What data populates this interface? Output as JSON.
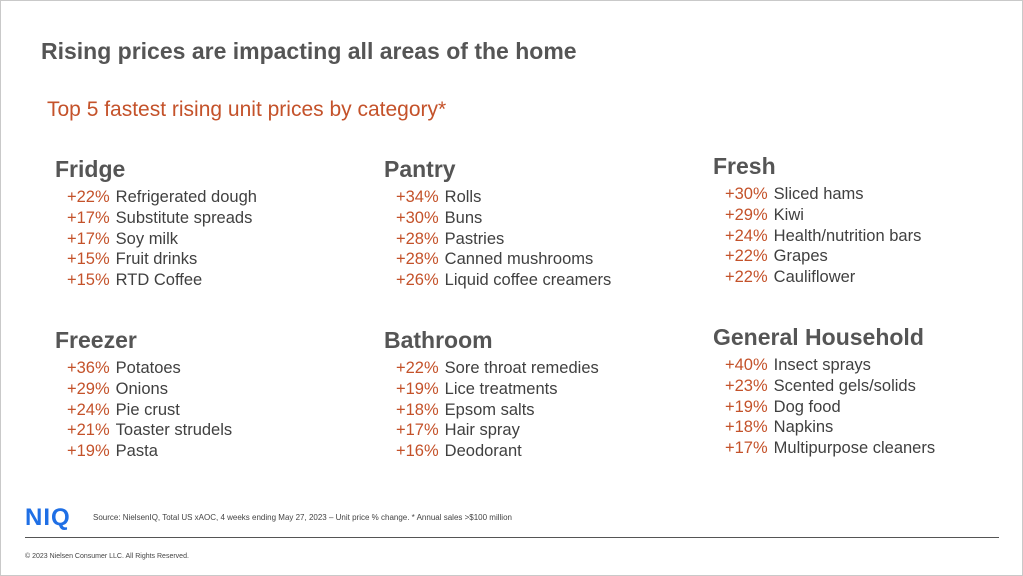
{
  "title": "Rising prices are impacting all areas of the home",
  "subtitle": "Top 5 fastest rising unit prices by category*",
  "categories": [
    {
      "name": "Fridge",
      "items": [
        {
          "pct": "+22%",
          "label": "Refrigerated dough"
        },
        {
          "pct": "+17%",
          "label": "Substitute spreads"
        },
        {
          "pct": "+17%",
          "label": "Soy milk"
        },
        {
          "pct": "+15%",
          "label": "Fruit drinks"
        },
        {
          "pct": "+15%",
          "label": "RTD Coffee"
        }
      ]
    },
    {
      "name": "Pantry",
      "items": [
        {
          "pct": "+34%",
          "label": "Rolls"
        },
        {
          "pct": "+30%",
          "label": "Buns"
        },
        {
          "pct": "+28%",
          "label": "Pastries"
        },
        {
          "pct": "+28%",
          "label": "Canned mushrooms"
        },
        {
          "pct": "+26%",
          "label": "Liquid coffee creamers"
        }
      ]
    },
    {
      "name": "Fresh",
      "items": [
        {
          "pct": "+30%",
          "label": "Sliced hams"
        },
        {
          "pct": "+29%",
          "label": "Kiwi"
        },
        {
          "pct": "+24%",
          "label": "Health/nutrition bars"
        },
        {
          "pct": "+22%",
          "label": "Grapes"
        },
        {
          "pct": "+22%",
          "label": "Cauliflower"
        }
      ]
    },
    {
      "name": "Freezer",
      "items": [
        {
          "pct": "+36%",
          "label": "Potatoes"
        },
        {
          "pct": "+29%",
          "label": "Onions"
        },
        {
          "pct": "+24%",
          "label": "Pie crust"
        },
        {
          "pct": "+21%",
          "label": "Toaster strudels"
        },
        {
          "pct": "+19%",
          "label": "Pasta"
        }
      ]
    },
    {
      "name": "Bathroom",
      "items": [
        {
          "pct": "+22%",
          "label": "Sore throat remedies"
        },
        {
          "pct": "+19%",
          "label": "Lice treatments"
        },
        {
          "pct": "+18%",
          "label": "Epsom salts"
        },
        {
          "pct": "+17%",
          "label": "Hair spray"
        },
        {
          "pct": "+16%",
          "label": "Deodorant"
        }
      ]
    },
    {
      "name": "General Household",
      "items": [
        {
          "pct": "+40%",
          "label": "Insect sprays"
        },
        {
          "pct": "+23%",
          "label": "Scented gels/solids"
        },
        {
          "pct": "+19%",
          "label": "Dog food"
        },
        {
          "pct": "+18%",
          "label": "Napkins"
        },
        {
          "pct": "+17%",
          "label": "Multipurpose cleaners"
        }
      ]
    }
  ],
  "footer": {
    "logo": "NIQ",
    "source": "Source: NielsenIQ, Total US xAOC,  4 weeks ending May 27,  2023  – Unit price % change. * Annual sales >$100 million",
    "copyright": "© 2023 Nielsen Consumer LLC. All Rights Reserved."
  },
  "colors": {
    "accent": "#c4522a",
    "heading": "#555555",
    "text": "#404040",
    "logo": "#1f6fe5"
  }
}
